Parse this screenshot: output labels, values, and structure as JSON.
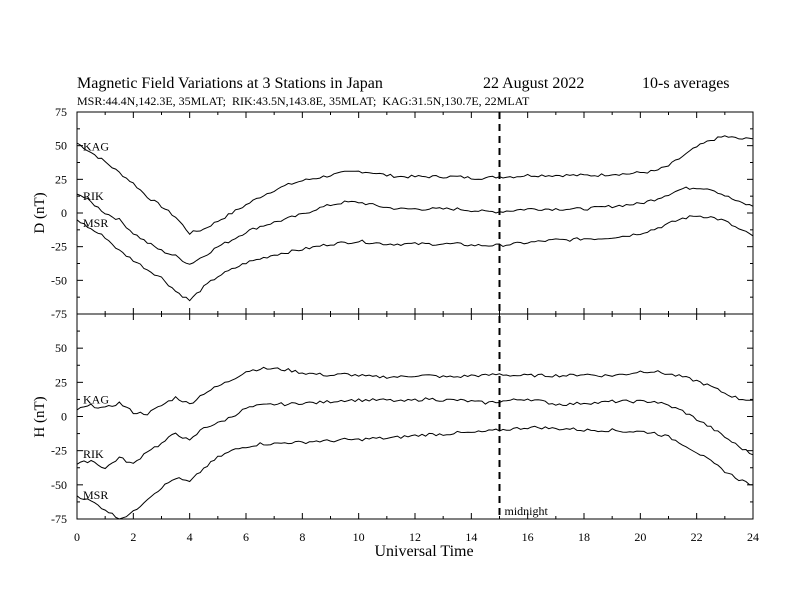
{
  "chart_data": {
    "type": "line",
    "title": "Magnetic Field Variations at 3 Stations in Japan",
    "date": "22 August 2022",
    "averaging": "10-s averages",
    "subtitle": "MSR:44.4N,142.3E, 35MLAT;  RIK:43.5N,143.8E, 35MLAT;  KAG:31.5N,130.7E, 22MLAT",
    "xlabel": "Universal Time",
    "xlim": [
      0,
      24
    ],
    "xticks": [
      "0",
      "2",
      "4",
      "6",
      "8",
      "10",
      "12",
      "14",
      "16",
      "18",
      "20",
      "22",
      "24"
    ],
    "annotation": {
      "x": 15,
      "label": "midnight"
    },
    "panels": [
      {
        "ylabel": "D (nT)",
        "ylim": [
          -75,
          75
        ],
        "yticks": [
          "75",
          "50",
          "25",
          "0",
          "-25",
          "-50",
          "-75"
        ],
        "series": [
          {
            "name": "KAG",
            "x": [
              0,
              0.5,
              1,
              1.5,
              2,
              2.5,
              3,
              3.5,
              4,
              4.5,
              5,
              5.5,
              6,
              6.5,
              7,
              7.5,
              8,
              8.5,
              9,
              9.5,
              10,
              10.5,
              11,
              11.5,
              12,
              12.5,
              13,
              13.5,
              14,
              14.5,
              15,
              15.5,
              16,
              16.5,
              17,
              17.5,
              18,
              18.5,
              19,
              19.5,
              20,
              20.5,
              21,
              21.5,
              22,
              22.5,
              23,
              23.5,
              24
            ],
            "values": [
              52,
              45,
              38,
              30,
              22,
              12,
              5,
              -3,
              -15,
              -12,
              -6,
              0,
              6,
              12,
              17,
              21,
              24,
              26,
              28,
              30,
              31,
              30,
              28,
              27,
              27,
              27,
              27,
              27,
              26,
              26,
              27,
              27,
              28,
              28,
              28,
              28,
              28,
              28,
              29,
              29,
              30,
              31,
              35,
              42,
              49,
              54,
              57,
              55,
              55
            ]
          },
          {
            "name": "RIK",
            "x": [
              0,
              0.5,
              1,
              1.5,
              2,
              2.5,
              3,
              3.5,
              4,
              4.5,
              5,
              5.5,
              6,
              6.5,
              7,
              7.5,
              8,
              8.5,
              9,
              9.5,
              10,
              10.5,
              11,
              11.5,
              12,
              12.5,
              13,
              13.5,
              14,
              14.5,
              15,
              15.5,
              16,
              16.5,
              17,
              17.5,
              18,
              18.5,
              19,
              19.5,
              20,
              20.5,
              21,
              21.5,
              22,
              22.5,
              23,
              23.5,
              24
            ],
            "values": [
              15,
              8,
              0,
              -5,
              -15,
              -22,
              -28,
              -32,
              -38,
              -32,
              -25,
              -20,
              -14,
              -10,
              -7,
              -4,
              -1,
              3,
              6,
              8,
              8,
              6,
              4,
              3,
              3,
              3,
              3,
              3,
              2,
              1,
              1,
              2,
              3,
              3,
              3,
              3,
              3,
              4,
              5,
              6,
              7,
              10,
              14,
              18,
              19,
              18,
              13,
              8,
              5
            ]
          },
          {
            "name": "MSR",
            "x": [
              0,
              0.5,
              1,
              1.5,
              2,
              2.5,
              3,
              3.5,
              4,
              4.5,
              5,
              5.5,
              6,
              6.5,
              7,
              7.5,
              8,
              8.5,
              9,
              9.5,
              10,
              10.5,
              11,
              11.5,
              12,
              12.5,
              13,
              13.5,
              14,
              14.5,
              15,
              15.5,
              16,
              16.5,
              17,
              17.5,
              18,
              18.5,
              19,
              19.5,
              20,
              20.5,
              21,
              21.5,
              22,
              22.5,
              23,
              23.5,
              24
            ],
            "values": [
              -5,
              -12,
              -18,
              -28,
              -35,
              -42,
              -48,
              -58,
              -65,
              -55,
              -47,
              -42,
              -37,
              -34,
              -31,
              -29,
              -27,
              -25,
              -23,
              -22,
              -21,
              -22,
              -23,
              -23,
              -23,
              -23,
              -23,
              -23,
              -24,
              -24,
              -24,
              -23,
              -22,
              -21,
              -20,
              -20,
              -19,
              -19,
              -18,
              -17,
              -15,
              -12,
              -8,
              -4,
              -2,
              -3,
              -6,
              -12,
              -17
            ]
          }
        ]
      },
      {
        "ylabel": "H (nT)",
        "ylim": [
          -75,
          75
        ],
        "yticks": [
          "75",
          "50",
          "25",
          "0",
          "-25",
          "-50",
          "-75"
        ],
        "series": [
          {
            "name": "KAG",
            "x": [
              0,
              0.5,
              1,
              1.5,
              2,
              2.5,
              3,
              3.5,
              4,
              4.5,
              5,
              5.5,
              6,
              6.5,
              7,
              7.5,
              8,
              8.5,
              9,
              9.5,
              10,
              10.5,
              11,
              11.5,
              12,
              12.5,
              13,
              13.5,
              14,
              14.5,
              15,
              15.5,
              16,
              16.5,
              17,
              17.5,
              18,
              18.5,
              19,
              19.5,
              20,
              20.5,
              21,
              21.5,
              22,
              22.5,
              23,
              23.5,
              24
            ],
            "values": [
              5,
              8,
              6,
              10,
              3,
              2,
              8,
              14,
              9,
              17,
              22,
              27,
              33,
              35,
              35,
              34,
              32,
              31,
              30,
              31,
              30,
              29,
              29,
              29,
              30,
              30,
              29,
              29,
              30,
              30,
              31,
              30,
              30,
              30,
              30,
              30,
              31,
              30,
              30,
              31,
              33,
              33,
              31,
              29,
              26,
              22,
              17,
              13,
              12
            ]
          },
          {
            "name": "RIK",
            "x": [
              0,
              0.5,
              1,
              1.5,
              2,
              2.5,
              3,
              3.5,
              4,
              4.5,
              5,
              5.5,
              6,
              6.5,
              7,
              7.5,
              8,
              8.5,
              9,
              9.5,
              10,
              10.5,
              11,
              11.5,
              12,
              12.5,
              13,
              13.5,
              14,
              14.5,
              15,
              15.5,
              16,
              16.5,
              17,
              17.5,
              18,
              18.5,
              19,
              19.5,
              20,
              20.5,
              21,
              21.5,
              22,
              22.5,
              23,
              23.5,
              24
            ],
            "values": [
              -35,
              -32,
              -38,
              -30,
              -35,
              -25,
              -20,
              -12,
              -18,
              -8,
              -5,
              0,
              6,
              8,
              9,
              9,
              10,
              10,
              11,
              12,
              12,
              12,
              12,
              11,
              12,
              13,
              12,
              12,
              11,
              10,
              11,
              12,
              13,
              11,
              9,
              9,
              10,
              10,
              11,
              11,
              11,
              11,
              8,
              4,
              -2,
              -8,
              -15,
              -22,
              -28
            ]
          },
          {
            "name": "MSR",
            "x": [
              0,
              0.5,
              1,
              1.5,
              2,
              2.5,
              3,
              3.5,
              4,
              4.5,
              5,
              5.5,
              6,
              6.5,
              7,
              7.5,
              8,
              8.5,
              9,
              9.5,
              10,
              10.5,
              11,
              11.5,
              12,
              12.5,
              13,
              13.5,
              14,
              14.5,
              15,
              15.5,
              16,
              16.5,
              17,
              17.5,
              18,
              18.5,
              19,
              19.5,
              20,
              20.5,
              21,
              21.5,
              22,
              22.5,
              23,
              23.5,
              24
            ],
            "values": [
              -58,
              -62,
              -68,
              -75,
              -70,
              -60,
              -52,
              -45,
              -48,
              -38,
              -30,
              -25,
              -22,
              -20,
              -20,
              -19,
              -19,
              -18,
              -18,
              -17,
              -17,
              -16,
              -16,
              -15,
              -14,
              -13,
              -13,
              -12,
              -12,
              -11,
              -10,
              -9,
              -8,
              -8,
              -9,
              -9,
              -10,
              -10,
              -10,
              -11,
              -11,
              -12,
              -15,
              -20,
              -26,
              -33,
              -40,
              -46,
              -50
            ]
          }
        ]
      }
    ]
  }
}
